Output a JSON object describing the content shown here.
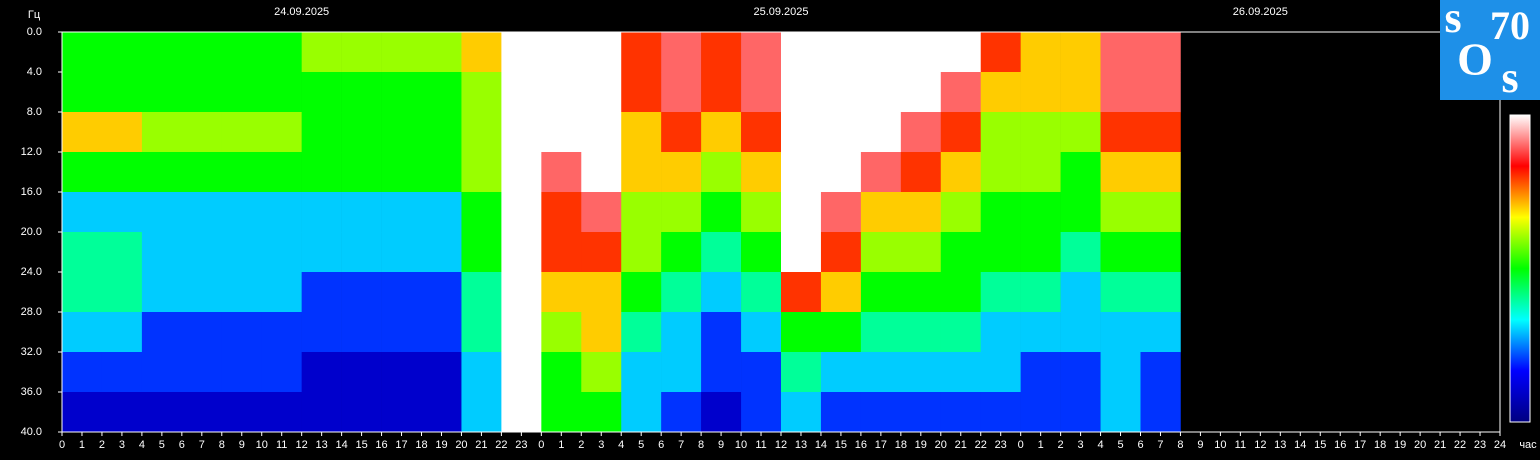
{
  "chart_data": {
    "type": "heatmap",
    "y_unit": "Гц",
    "x_unit": "час",
    "days": [
      "24.09.2025",
      "25.09.2025",
      "26.09.2025"
    ],
    "logo": [
      "s",
      "70",
      "O",
      "s"
    ],
    "x": [
      0,
      2,
      4,
      6,
      8,
      10,
      12,
      14,
      16,
      18,
      20,
      22,
      24,
      26,
      28,
      30,
      32,
      34,
      36,
      38,
      40,
      42,
      44,
      46,
      48,
      50,
      52,
      54
    ],
    "y": [
      0,
      4,
      8,
      12,
      16,
      20,
      24,
      28,
      32,
      36
    ],
    "z": [
      [
        5,
        5,
        5,
        5,
        5,
        5,
        6,
        6,
        6,
        6,
        7,
        10,
        10,
        10,
        8,
        9,
        8,
        9,
        10,
        10,
        10,
        10,
        10,
        8,
        7,
        7,
        9,
        9
      ],
      [
        5,
        5,
        5,
        5,
        5,
        5,
        5,
        5,
        5,
        5,
        6,
        10,
        10,
        10,
        8,
        9,
        8,
        9,
        10,
        10,
        10,
        10,
        9,
        7,
        7,
        7,
        9,
        9
      ],
      [
        7,
        7,
        6,
        6,
        6,
        6,
        5,
        5,
        5,
        5,
        6,
        10,
        10,
        10,
        7,
        8,
        7,
        8,
        10,
        10,
        10,
        9,
        8,
        6,
        6,
        6,
        8,
        8
      ],
      [
        5,
        5,
        5,
        5,
        5,
        5,
        5,
        5,
        5,
        5,
        6,
        10,
        9,
        10,
        7,
        7,
        6,
        7,
        10,
        10,
        9,
        8,
        7,
        6,
        6,
        5,
        7,
        7
      ],
      [
        3,
        3,
        3,
        3,
        3,
        3,
        3,
        3,
        3,
        3,
        5,
        10,
        8,
        9,
        6,
        6,
        5,
        6,
        10,
        9,
        7,
        7,
        6,
        5,
        5,
        5,
        6,
        6
      ],
      [
        4,
        4,
        3,
        3,
        3,
        3,
        3,
        3,
        3,
        3,
        5,
        10,
        8,
        8,
        6,
        5,
        4,
        5,
        10,
        8,
        6,
        6,
        5,
        5,
        5,
        4,
        5,
        5
      ],
      [
        4,
        4,
        3,
        3,
        3,
        3,
        2,
        2,
        2,
        2,
        4,
        10,
        7,
        7,
        5,
        4,
        3,
        4,
        8,
        7,
        5,
        5,
        5,
        4,
        4,
        3,
        4,
        4
      ],
      [
        3,
        3,
        2,
        2,
        2,
        2,
        2,
        2,
        2,
        2,
        4,
        10,
        6,
        7,
        4,
        3,
        2,
        3,
        5,
        5,
        4,
        4,
        4,
        3,
        3,
        3,
        3,
        3
      ],
      [
        2,
        2,
        2,
        2,
        2,
        2,
        1,
        1,
        1,
        1,
        3,
        10,
        5,
        6,
        3,
        3,
        2,
        2,
        4,
        3,
        3,
        3,
        3,
        3,
        2,
        2,
        3,
        2
      ],
      [
        1,
        1,
        1,
        1,
        1,
        1,
        1,
        1,
        1,
        1,
        3,
        10,
        5,
        5,
        3,
        2,
        1,
        2,
        3,
        2,
        2,
        2,
        2,
        2,
        2,
        2,
        3,
        2
      ]
    ],
    "zlim": [
      0,
      10
    ],
    "colorscale": [
      "#000080",
      "#0000ff",
      "#00ffff",
      "#00ff00",
      "#ffff00",
      "#ff0000",
      "#ffffff"
    ],
    "xlim": [
      0,
      72
    ],
    "ylim": [
      40,
      0
    ],
    "yticks": [
      {
        "value": 0,
        "label": "0.0"
      },
      {
        "value": 4,
        "label": "4.0"
      },
      {
        "value": 8,
        "label": "8.0"
      },
      {
        "value": 12,
        "label": "12.0"
      },
      {
        "value": 16,
        "label": "16.0"
      },
      {
        "value": 20,
        "label": "20.0"
      },
      {
        "value": 24,
        "label": "24.0"
      },
      {
        "value": 28,
        "label": "28.0"
      },
      {
        "value": 32,
        "label": "32.0"
      },
      {
        "value": 36,
        "label": "36.0"
      },
      {
        "value": 40,
        "label": "40.0"
      }
    ],
    "xticks": [
      0,
      1,
      2,
      3,
      4,
      5,
      6,
      7,
      8,
      9,
      10,
      11,
      12,
      13,
      14,
      15,
      16,
      17,
      18,
      19,
      20,
      21,
      22,
      23,
      {
        "value": 24,
        "label": "0"
      },
      {
        "value": 25,
        "label": "1"
      },
      {
        "value": 26,
        "label": "2"
      },
      {
        "value": 27,
        "label": "3"
      },
      {
        "value": 28,
        "label": "4"
      },
      {
        "value": 29,
        "label": "5"
      },
      {
        "value": 30,
        "label": "6"
      },
      {
        "value": 31,
        "label": "7"
      },
      {
        "value": 32,
        "label": "8"
      },
      {
        "value": 33,
        "label": "9"
      },
      {
        "value": 34,
        "label": "10"
      },
      {
        "value": 35,
        "label": "11"
      },
      {
        "value": 36,
        "label": "12"
      },
      {
        "value": 37,
        "label": "13"
      },
      {
        "value": 38,
        "label": "14"
      },
      {
        "value": 39,
        "label": "15"
      },
      {
        "value": 40,
        "label": "16"
      },
      {
        "value": 41,
        "label": "17"
      },
      {
        "value": 42,
        "label": "18"
      },
      {
        "value": 43,
        "label": "19"
      },
      {
        "value": 44,
        "label": "20"
      },
      {
        "value": 45,
        "label": "21"
      },
      {
        "value": 46,
        "label": "22"
      },
      {
        "value": 47,
        "label": "23"
      },
      {
        "value": 48,
        "label": "0"
      },
      {
        "value": 49,
        "label": "1"
      },
      {
        "value": 50,
        "label": "2"
      },
      {
        "value": 51,
        "label": "3"
      },
      {
        "value": 52,
        "label": "4"
      },
      {
        "value": 53,
        "label": "5"
      },
      {
        "value": 54,
        "label": "6"
      },
      {
        "value": 55,
        "label": "7"
      },
      {
        "value": 56,
        "label": "8"
      },
      {
        "value": 57,
        "label": "9"
      },
      {
        "value": 58,
        "label": "10"
      },
      {
        "value": 59,
        "label": "11"
      },
      {
        "value": 60,
        "label": "12"
      },
      {
        "value": 61,
        "label": "13"
      },
      {
        "value": 62,
        "label": "14"
      },
      {
        "value": 63,
        "label": "15"
      },
      {
        "value": 64,
        "label": "16"
      },
      {
        "value": 65,
        "label": "17"
      },
      {
        "value": 66,
        "label": "18"
      },
      {
        "value": 67,
        "label": "19"
      },
      {
        "value": 68,
        "label": "20"
      },
      {
        "value": 69,
        "label": "21"
      },
      {
        "value": 70,
        "label": "22"
      },
      {
        "value": 71,
        "label": "23"
      },
      {
        "value": 72,
        "label": "24"
      }
    ]
  }
}
